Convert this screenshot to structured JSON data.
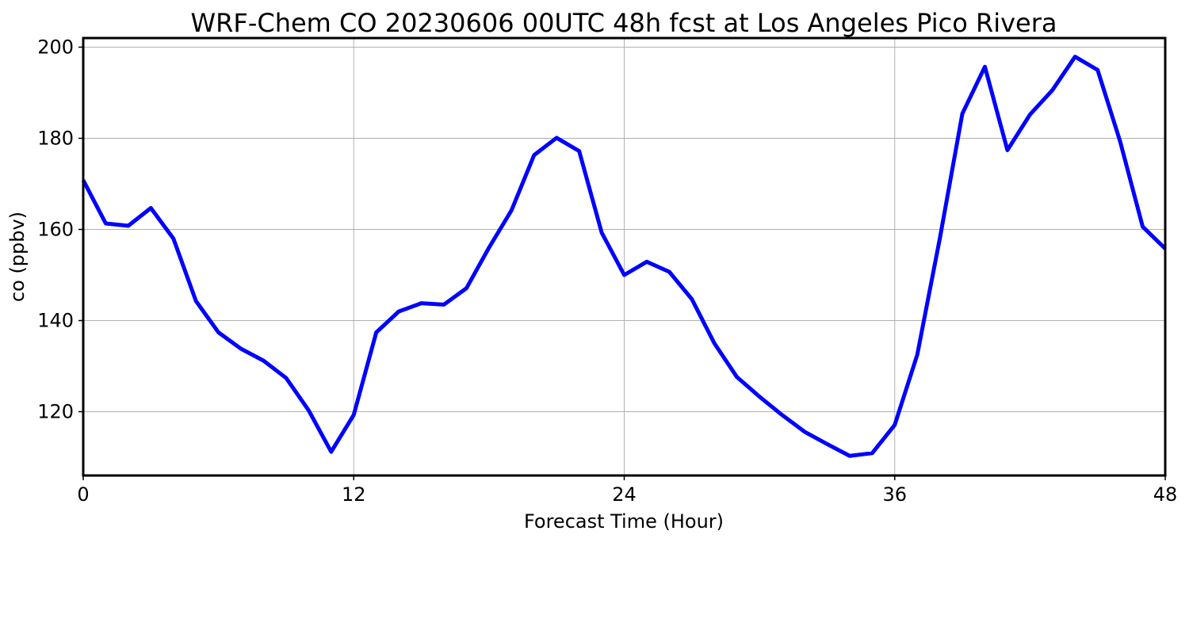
{
  "chart_data": {
    "type": "line",
    "title": "WRF-Chem CO  20230606 00UTC 48h fcst at Los Angeles Pico Rivera",
    "xlabel": "Forecast Time (Hour)",
    "ylabel": "co  (ppbv)",
    "xlim": [
      0,
      48
    ],
    "ylim": [
      106,
      202
    ],
    "xticks": [
      0,
      12,
      24,
      36,
      48
    ],
    "xtick_labels": [
      "0",
      "12",
      "24",
      "36",
      "48"
    ],
    "yticks": [
      120,
      140,
      160,
      180,
      200
    ],
    "ytick_labels": [
      "120",
      "140",
      "160",
      "180",
      "200"
    ],
    "grid": true,
    "legend": "none",
    "line_color": "#0000ff",
    "grid_color": "#b0b0b0",
    "series": [
      {
        "x": [
          0,
          1,
          2,
          3,
          4,
          5,
          6,
          7,
          8,
          9,
          10,
          11,
          12,
          13,
          14,
          15,
          16,
          17,
          18,
          19,
          20,
          21,
          22,
          23,
          24,
          25,
          26,
          27,
          28,
          29,
          30,
          31,
          32,
          33,
          34,
          35,
          36,
          37,
          38,
          39,
          40,
          41,
          42,
          43,
          44,
          45,
          46,
          47,
          48
        ],
        "values": [
          170.8,
          161.3,
          160.8,
          164.7,
          158.0,
          144.3,
          137.4,
          133.8,
          131.2,
          127.4,
          120.3,
          111.2,
          119.3,
          137.4,
          142.0,
          143.8,
          143.5,
          147.1,
          156.0,
          164.2,
          176.3,
          180.1,
          177.2,
          159.3,
          150.0,
          152.9,
          150.7,
          144.7,
          135.0,
          127.6,
          123.3,
          119.3,
          115.6,
          112.9,
          110.3,
          110.9,
          117.1,
          132.5,
          158.0,
          185.4,
          195.7,
          177.4,
          185.2,
          190.6,
          197.9,
          195.0,
          179.3,
          160.6,
          155.8
        ]
      }
    ]
  }
}
